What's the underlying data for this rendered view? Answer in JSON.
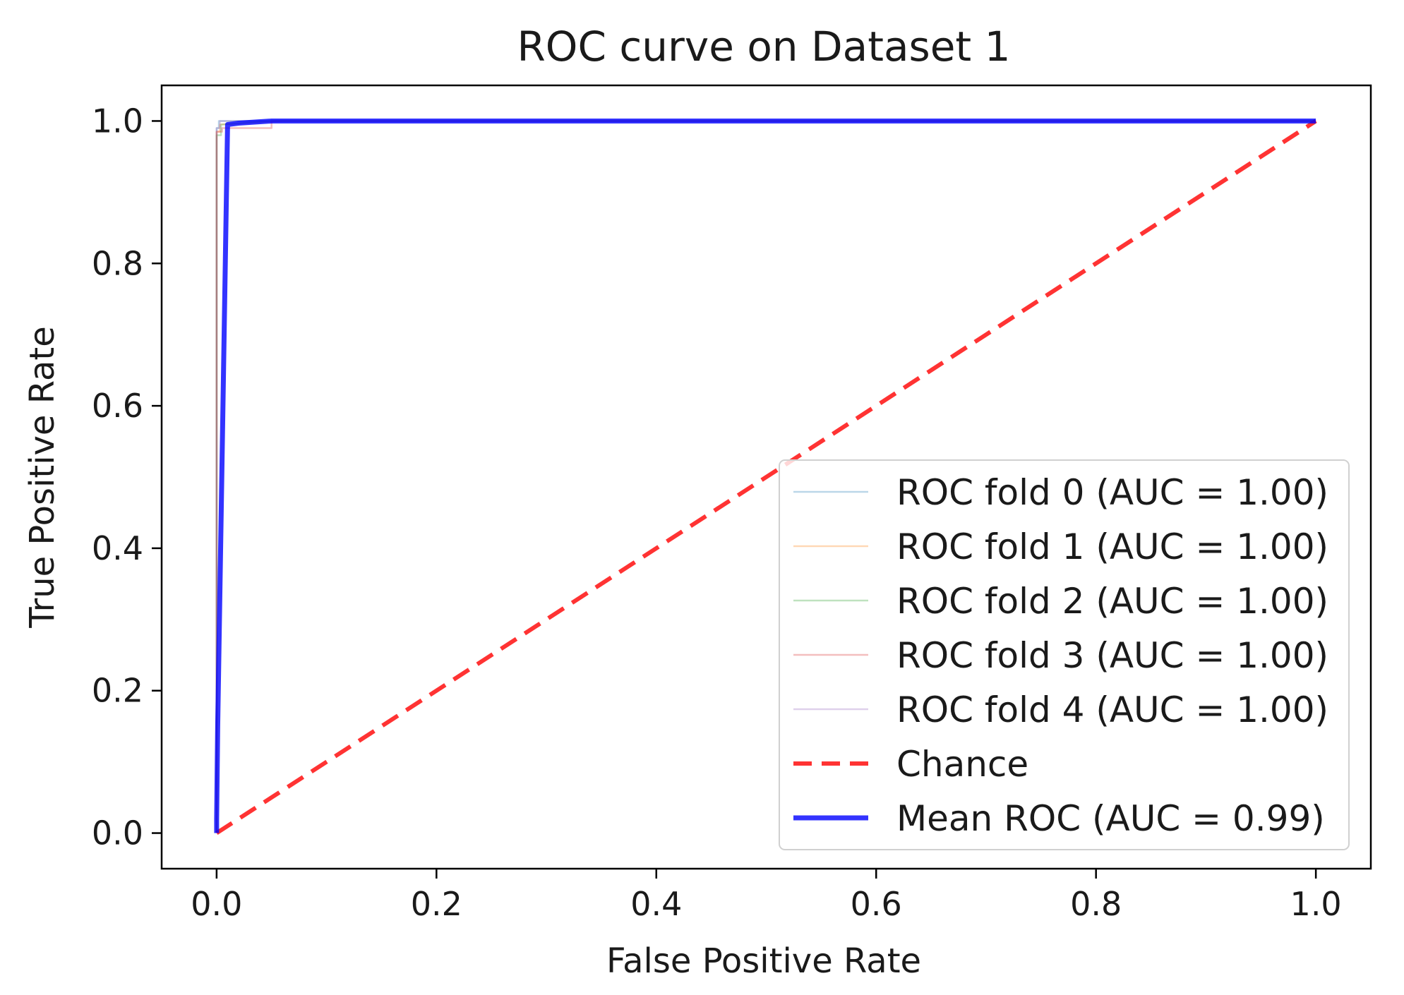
{
  "chart_data": {
    "type": "line",
    "title": "ROC curve on Dataset 1",
    "xlabel": "False Positive Rate",
    "ylabel": "True Positive Rate",
    "xlim": [
      -0.05,
      1.05
    ],
    "ylim": [
      -0.05,
      1.05
    ],
    "xticks": [
      0.0,
      0.2,
      0.4,
      0.6,
      0.8,
      1.0
    ],
    "xtick_labels": [
      "0.0",
      "0.2",
      "0.4",
      "0.6",
      "0.8",
      "1.0"
    ],
    "yticks": [
      0.0,
      0.2,
      0.4,
      0.6,
      0.8,
      1.0
    ],
    "ytick_labels": [
      "0.0",
      "0.2",
      "0.4",
      "0.6",
      "0.8",
      "1.0"
    ],
    "legend_position": "lower-right",
    "series": [
      {
        "name": "ROC fold 0 (AUC = 1.00)",
        "color": "#1f77b4",
        "alpha": 0.3,
        "style": "solid",
        "x": [
          0.0,
          0.0,
          0.002,
          0.002,
          0.05,
          1.0
        ],
        "y": [
          0.0,
          0.99,
          0.99,
          1.0,
          1.0,
          1.0
        ]
      },
      {
        "name": "ROC fold 1 (AUC = 1.00)",
        "color": "#ff7f0e",
        "alpha": 0.3,
        "style": "solid",
        "x": [
          0.0,
          0.0,
          0.003,
          0.003,
          0.06,
          1.0
        ],
        "y": [
          0.0,
          0.985,
          0.985,
          0.995,
          1.0,
          1.0
        ]
      },
      {
        "name": "ROC fold 2 (AUC = 1.00)",
        "color": "#2ca02c",
        "alpha": 0.3,
        "style": "solid",
        "x": [
          0.0,
          0.0,
          0.004,
          0.004,
          0.05,
          1.0
        ],
        "y": [
          0.0,
          0.98,
          0.98,
          0.995,
          1.0,
          1.0
        ]
      },
      {
        "name": "ROC fold 3 (AUC = 1.00)",
        "color": "#d62728",
        "alpha": 0.3,
        "style": "solid",
        "x": [
          0.0,
          0.0,
          0.005,
          0.005,
          0.05,
          0.05,
          1.0
        ],
        "y": [
          0.0,
          0.985,
          0.985,
          0.99,
          0.99,
          1.0,
          1.0
        ]
      },
      {
        "name": "ROC fold 4 (AUC = 1.00)",
        "color": "#9467bd",
        "alpha": 0.3,
        "style": "solid",
        "x": [
          0.0,
          0.0,
          0.003,
          0.003,
          0.04,
          1.0
        ],
        "y": [
          0.0,
          0.99,
          0.99,
          1.0,
          1.0,
          1.0
        ]
      },
      {
        "name": "Chance",
        "color": "#ff0000",
        "alpha": 0.8,
        "style": "dashed",
        "x": [
          0.0,
          1.0
        ],
        "y": [
          0.0,
          1.0
        ]
      },
      {
        "name": "Mean ROC (AUC = 0.99)",
        "color": "#0000ff",
        "alpha": 0.8,
        "style": "solid-thick",
        "x": [
          0.0,
          0.0,
          0.001,
          0.01,
          0.02,
          0.05,
          0.1,
          1.0
        ],
        "y": [
          0.0,
          0.02,
          0.15,
          0.995,
          0.997,
          1.0,
          1.0,
          1.0
        ]
      }
    ]
  }
}
